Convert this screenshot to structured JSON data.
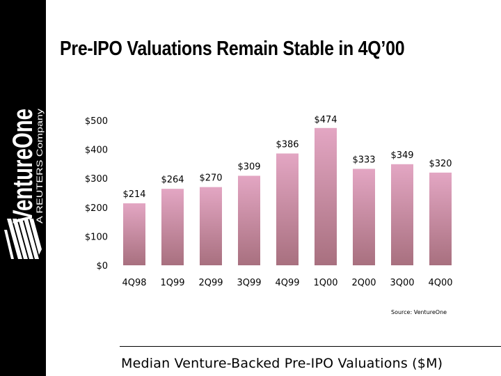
{
  "brand": {
    "name": "VentureOne",
    "tagline": "A REUTERS Company"
  },
  "slide": {
    "title": "Pre-IPO Valuations Remain Stable in 4Q’00",
    "source": "Source: VentureOne",
    "caption": "Median Venture-Backed Pre-IPO Valuations ($M)"
  },
  "colors": {
    "sidebar": "#000000",
    "bar_top": "#e3a6c3",
    "bar_bottom": "#a8707f"
  },
  "chart_data": {
    "type": "bar",
    "title": "Median Venture-Backed Pre-IPO Valuations ($M)",
    "xlabel": "",
    "ylabel": "",
    "categories": [
      "4Q98",
      "1Q99",
      "2Q99",
      "3Q99",
      "4Q99",
      "1Q00",
      "2Q00",
      "3Q00",
      "4Q00"
    ],
    "values": [
      214,
      264,
      270,
      309,
      386,
      474,
      333,
      349,
      320
    ],
    "data_labels": [
      "$214",
      "$264",
      "$270",
      "$309",
      "$386",
      "$474",
      "$333",
      "$349",
      "$320"
    ],
    "ylim": [
      0,
      500
    ],
    "yticks": [
      0,
      100,
      200,
      300,
      400,
      500
    ],
    "ytick_labels": [
      "$0",
      "$100",
      "$200",
      "$300",
      "$400",
      "$500"
    ],
    "grid": false,
    "legend": "none"
  }
}
